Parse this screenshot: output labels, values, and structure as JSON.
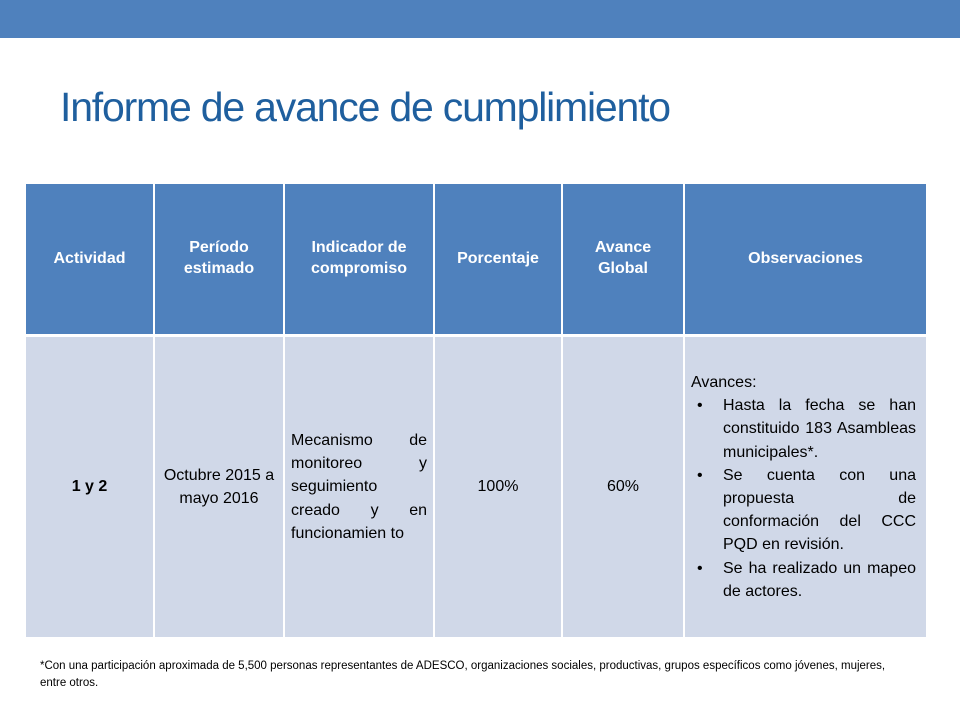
{
  "slide": {
    "title": "Informe de avance de cumplimiento",
    "accent_color": "#4f81bd",
    "title_color": "#1f5f9e"
  },
  "table": {
    "headers": [
      "Actividad",
      "Período estimado",
      "Indicador de compromiso",
      "Porcentaje",
      "Avance Global",
      "Observaciones"
    ],
    "row": {
      "actividad": "1 y 2",
      "periodo": "Octubre 2015 a mayo 2016",
      "indicador": "Mecanismo de monitoreo y seguimiento creado y en funcionamien to",
      "porcentaje": "100%",
      "avance_global": "60%",
      "observaciones": {
        "heading": "Avances:",
        "items": [
          "Hasta la fecha se han constituido 183 Asambleas municipales*.",
          "Se cuenta con una propuesta de conformación del CCC PQD en revisión.",
          "Se ha realizado un mapeo de actores."
        ]
      }
    }
  },
  "footnote": "*Con una participación aproximada de 5,500 personas representantes de ADESCO, organizaciones sociales, productivas, grupos específicos como jóvenes, mujeres, entre otros."
}
